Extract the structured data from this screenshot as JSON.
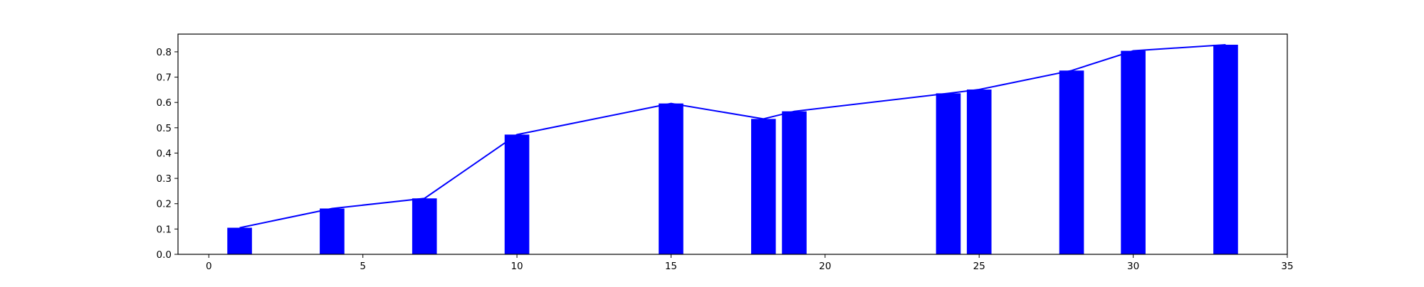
{
  "chart_data": {
    "type": "bar",
    "title": "",
    "xlabel": "",
    "ylabel": "",
    "xlim": [
      -1,
      35
    ],
    "ylim": [
      0,
      0.87
    ],
    "xticks": [
      0,
      5,
      10,
      15,
      20,
      25,
      30,
      35
    ],
    "yticks": [
      0.0,
      0.1,
      0.2,
      0.3,
      0.4,
      0.5,
      0.6,
      0.7,
      0.8
    ],
    "xtick_labels": [
      "0",
      "5",
      "10",
      "15",
      "20",
      "25",
      "30",
      "35"
    ],
    "ytick_labels": [
      "0.0",
      "0.1",
      "0.2",
      "0.3",
      "0.4",
      "0.5",
      "0.6",
      "0.7",
      "0.8"
    ],
    "grid": false,
    "bar_width": 0.8,
    "color": "#0000ff",
    "x": [
      1,
      4,
      7,
      10,
      15,
      18,
      19,
      24,
      25,
      28,
      30,
      33
    ],
    "values": [
      0.105,
      0.181,
      0.221,
      0.473,
      0.596,
      0.535,
      0.565,
      0.636,
      0.651,
      0.726,
      0.804,
      0.828
    ],
    "line": {
      "x": [
        1,
        4,
        7,
        10,
        15,
        18,
        19,
        24,
        25,
        28,
        30,
        33
      ],
      "values": [
        0.105,
        0.181,
        0.221,
        0.473,
        0.596,
        0.535,
        0.565,
        0.636,
        0.651,
        0.726,
        0.804,
        0.828
      ],
      "color": "#0000ff"
    }
  }
}
